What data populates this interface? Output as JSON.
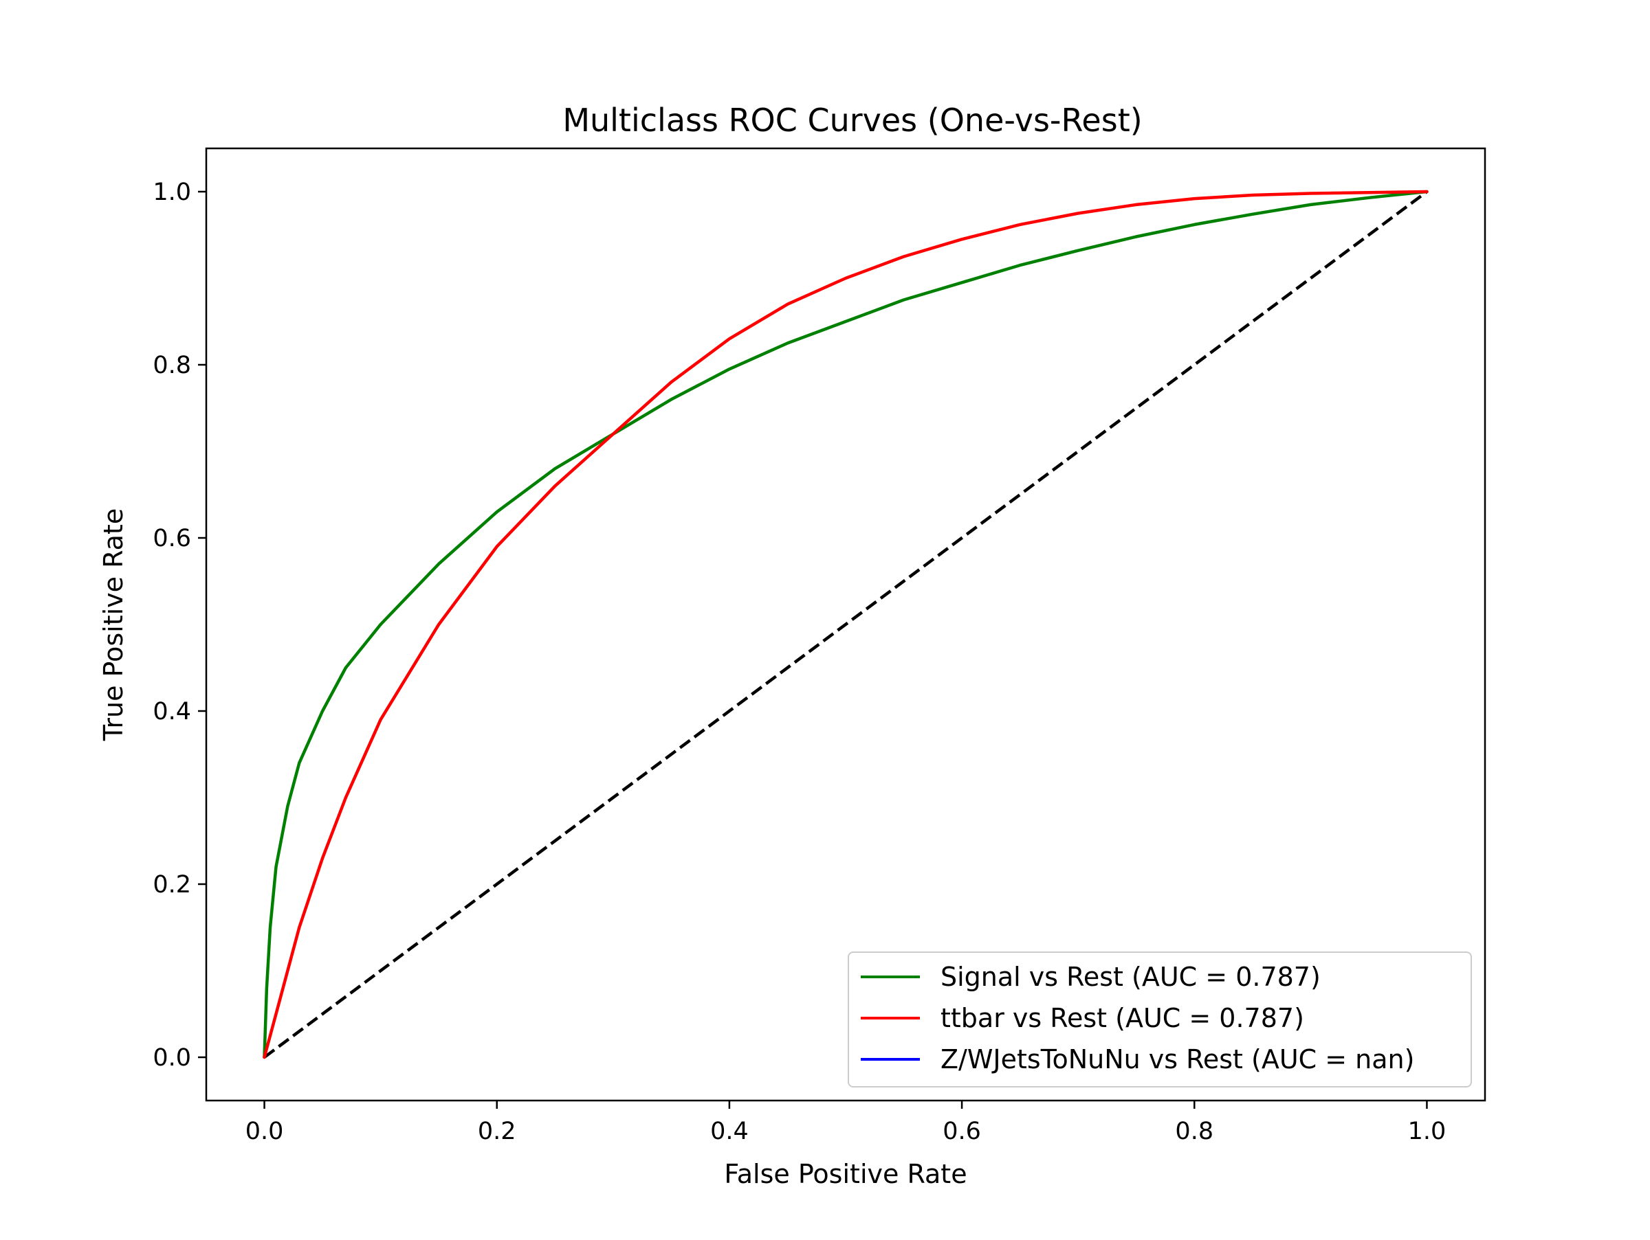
{
  "chart_data": {
    "type": "line",
    "title": "Multiclass ROC Curves (One-vs-Rest)",
    "xlabel": "False Positive Rate",
    "ylabel": "True Positive Rate",
    "xlim": [
      -0.05,
      1.05
    ],
    "ylim": [
      -0.05,
      1.05
    ],
    "xticks": [
      0.0,
      0.2,
      0.4,
      0.6,
      0.8,
      1.0
    ],
    "yticks": [
      0.0,
      0.2,
      0.4,
      0.6,
      0.8,
      1.0
    ],
    "xtick_labels": [
      "0.0",
      "0.2",
      "0.4",
      "0.6",
      "0.8",
      "1.0"
    ],
    "ytick_labels": [
      "0.0",
      "0.2",
      "0.4",
      "0.6",
      "0.8",
      "1.0"
    ],
    "grid": false,
    "legend_position": "bottom-right",
    "series": [
      {
        "name": "Signal vs Rest (AUC = 0.787)",
        "color": "#008000",
        "x": [
          0.0,
          0.002,
          0.005,
          0.01,
          0.02,
          0.03,
          0.05,
          0.07,
          0.1,
          0.15,
          0.2,
          0.25,
          0.3,
          0.35,
          0.4,
          0.45,
          0.5,
          0.55,
          0.6,
          0.65,
          0.7,
          0.75,
          0.8,
          0.85,
          0.9,
          0.95,
          1.0
        ],
        "y": [
          0.0,
          0.08,
          0.15,
          0.22,
          0.29,
          0.34,
          0.4,
          0.45,
          0.5,
          0.57,
          0.63,
          0.68,
          0.72,
          0.76,
          0.795,
          0.825,
          0.85,
          0.875,
          0.895,
          0.915,
          0.932,
          0.948,
          0.962,
          0.974,
          0.985,
          0.993,
          1.0
        ]
      },
      {
        "name": "ttbar vs Rest (AUC = 0.787)",
        "color": "#ff0000",
        "x": [
          0.0,
          0.01,
          0.02,
          0.03,
          0.05,
          0.07,
          0.1,
          0.15,
          0.2,
          0.25,
          0.3,
          0.35,
          0.4,
          0.45,
          0.5,
          0.55,
          0.6,
          0.65,
          0.7,
          0.75,
          0.8,
          0.85,
          0.9,
          0.95,
          1.0
        ],
        "y": [
          0.0,
          0.05,
          0.1,
          0.15,
          0.23,
          0.3,
          0.39,
          0.5,
          0.59,
          0.66,
          0.72,
          0.78,
          0.83,
          0.87,
          0.9,
          0.925,
          0.945,
          0.962,
          0.975,
          0.985,
          0.992,
          0.996,
          0.998,
          0.999,
          1.0
        ]
      },
      {
        "name": "Z/WJetsToNuNu vs Rest (AUC = nan)",
        "color": "#0000ff",
        "x": [],
        "y": []
      }
    ],
    "reference_line": {
      "x": [
        0.0,
        1.0
      ],
      "y": [
        0.0,
        1.0
      ],
      "color": "#000000",
      "style": "dashed"
    }
  }
}
